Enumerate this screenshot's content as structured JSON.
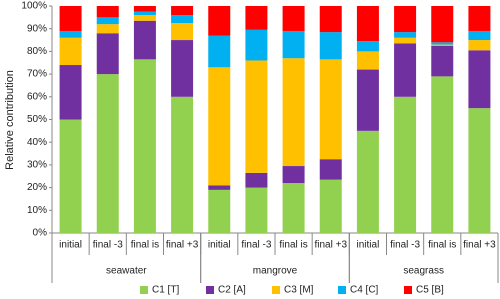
{
  "chart_data": {
    "type": "stacked_bar",
    "y_label": "Relative contribution",
    "groups": [
      {
        "name": "seawater",
        "categories": [
          "initial",
          "final -3",
          "final is",
          "final +3"
        ]
      },
      {
        "name": "mangrove",
        "categories": [
          "initial",
          "final -3",
          "final is",
          "final +3"
        ]
      },
      {
        "name": "seagrass",
        "categories": [
          "initial",
          "final -3",
          "final is",
          "final +3"
        ]
      }
    ],
    "series": [
      {
        "name": "C1 [T]",
        "color": "#92d050",
        "values": [
          50,
          70,
          76.5,
          60,
          19,
          20,
          22,
          23.5,
          45,
          60,
          69,
          55
        ]
      },
      {
        "name": "C2 [A]",
        "color": "#7030a0",
        "values": [
          24,
          18,
          17,
          25,
          2,
          6.5,
          7.5,
          9,
          27,
          23.5,
          13.5,
          25.5
        ]
      },
      {
        "name": "C3 [M]",
        "color": "#ffc000",
        "values": [
          12,
          4,
          2.5,
          7.5,
          52,
          49.5,
          47.5,
          44,
          8,
          2.5,
          0.5,
          4.5
        ]
      },
      {
        "name": "C4 [C]",
        "color": "#00b0f0",
        "values": [
          3,
          3,
          1.5,
          3.5,
          14,
          13.5,
          12,
          12,
          4.5,
          2.5,
          1,
          4
        ]
      },
      {
        "name": "C5 [B]",
        "color": "#ff0000",
        "values": [
          11,
          5,
          2.5,
          4,
          13,
          10.5,
          11,
          11.5,
          15.5,
          11.5,
          16,
          11
        ]
      }
    ],
    "ylim": [
      0,
      100
    ],
    "yticks": [
      {
        "value": 0,
        "label": "0%"
      },
      {
        "value": 10,
        "label": "10%"
      },
      {
        "value": 20,
        "label": "20%"
      },
      {
        "value": 30,
        "label": "30%"
      },
      {
        "value": 40,
        "label": "40%"
      },
      {
        "value": 50,
        "label": "50%"
      },
      {
        "value": 60,
        "label": "60%"
      },
      {
        "value": 70,
        "label": "70%"
      },
      {
        "value": 80,
        "label": "80%"
      },
      {
        "value": 90,
        "label": "90%"
      },
      {
        "value": 100,
        "label": "100%"
      }
    ],
    "legend": "bottom"
  }
}
